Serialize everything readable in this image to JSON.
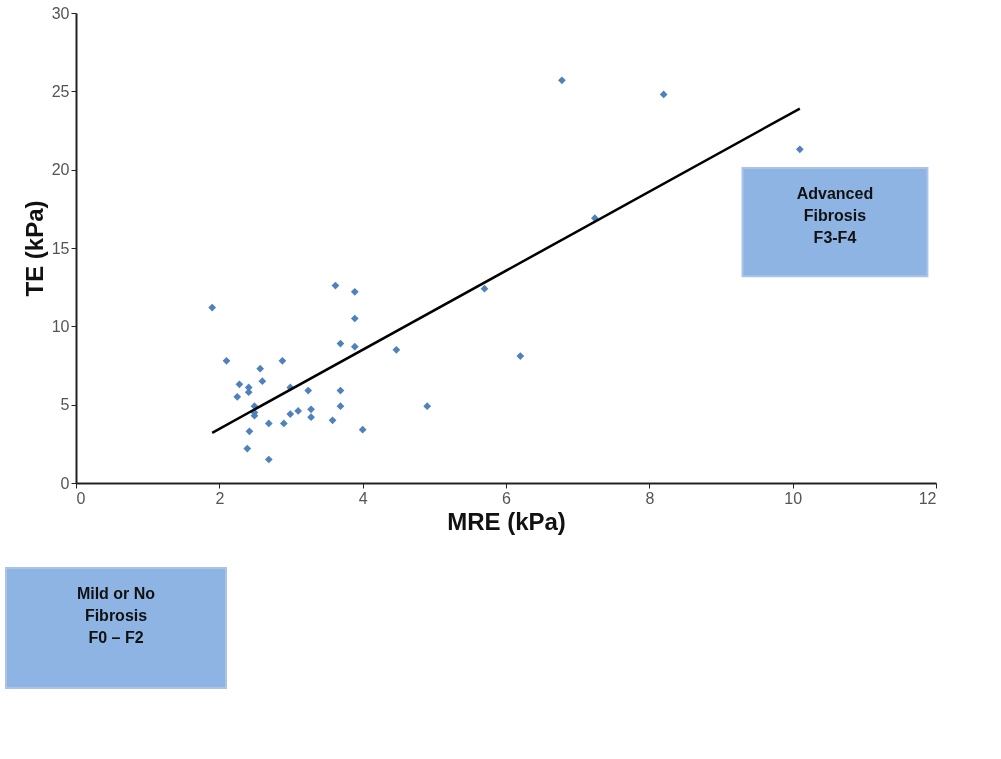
{
  "chart_data": {
    "type": "scatter",
    "xlabel": "MRE (kPa)",
    "ylabel": "TE (kPa)",
    "xlim": [
      0,
      12
    ],
    "xticks": [
      0,
      2,
      4,
      6,
      8,
      10,
      12
    ],
    "ylim": [
      0,
      30
    ],
    "yticks": [
      0,
      5,
      10,
      15,
      20,
      25,
      30
    ],
    "grid": false,
    "series": [
      {
        "color": "#4f81bd",
        "marker": "diamond",
        "x": [
          1.9,
          3.62,
          3.89,
          3.89,
          3.69,
          3.89,
          4.47,
          2.1,
          2.88,
          2.57,
          2.6,
          2.28,
          2.41,
          2.41,
          2.25,
          2.99,
          3.24,
          3.69,
          2.49,
          2.49,
          2.49,
          2.99,
          3.1,
          3.28,
          3.28,
          3.69,
          3.58,
          2.69,
          2.9,
          2.42,
          4.0,
          2.39,
          2.69,
          4.9,
          6.78,
          8.2,
          10.1,
          7.24,
          5.7,
          6.2
        ],
        "values": [
          11.2,
          12.6,
          12.2,
          10.5,
          8.9,
          8.7,
          8.5,
          7.8,
          7.8,
          7.3,
          6.5,
          6.3,
          6.1,
          5.8,
          5.5,
          6.1,
          5.9,
          5.9,
          4.9,
          4.5,
          4.3,
          4.4,
          4.6,
          4.7,
          4.2,
          4.9,
          4.0,
          3.8,
          3.8,
          3.3,
          3.4,
          2.2,
          1.5,
          4.9,
          25.7,
          24.8,
          21.3,
          16.9,
          12.4,
          8.1
        ]
      },
      {
        "type": "line",
        "color": "#000000",
        "x": [
          1.9,
          10.1
        ],
        "values": [
          3.2,
          23.9
        ],
        "line_style": "solid"
      }
    ],
    "annotations": [
      "Advanced\nFibrosis\nF3-F4",
      "Mild or No\nFibrosis\nF0 – F2"
    ]
  }
}
